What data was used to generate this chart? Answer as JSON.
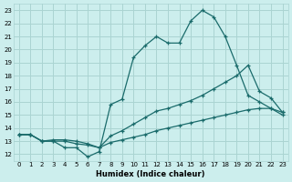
{
  "xlabel": "Humidex (Indice chaleur)",
  "xlim": [
    -0.5,
    23.5
  ],
  "ylim": [
    11.5,
    23.5
  ],
  "yticks": [
    12,
    13,
    14,
    15,
    16,
    17,
    18,
    19,
    20,
    21,
    22,
    23
  ],
  "xticks": [
    0,
    1,
    2,
    3,
    4,
    5,
    6,
    7,
    8,
    9,
    10,
    11,
    12,
    13,
    14,
    15,
    16,
    17,
    18,
    19,
    20,
    21,
    22,
    23
  ],
  "bg_color": "#cceeed",
  "grid_color": "#aad4d2",
  "line_color": "#1a6b6b",
  "line1_x": [
    0,
    1,
    2,
    3,
    4,
    5,
    6,
    7,
    8,
    9,
    10,
    11,
    12,
    13,
    14,
    15,
    16,
    17,
    18,
    19,
    20,
    21,
    22,
    23
  ],
  "line1_y": [
    13.5,
    13.5,
    13.0,
    13.0,
    12.5,
    12.5,
    11.8,
    12.2,
    15.8,
    16.2,
    19.4,
    20.3,
    21.0,
    20.5,
    20.5,
    22.2,
    23.0,
    22.5,
    21.0,
    18.8,
    16.5,
    16.0,
    15.5,
    15.0
  ],
  "line2_x": [
    0,
    1,
    2,
    3,
    4,
    5,
    6,
    7,
    8,
    9,
    10,
    11,
    12,
    13,
    14,
    15,
    16,
    17,
    18,
    19,
    20,
    21,
    22,
    23
  ],
  "line2_y": [
    13.5,
    13.5,
    13.0,
    13.1,
    13.1,
    13.0,
    12.8,
    12.5,
    13.4,
    13.8,
    14.3,
    14.8,
    15.3,
    15.5,
    15.8,
    16.1,
    16.5,
    17.0,
    17.5,
    18.0,
    18.8,
    16.8,
    16.3,
    15.2
  ],
  "line3_x": [
    0,
    1,
    2,
    3,
    4,
    5,
    6,
    7,
    8,
    9,
    10,
    11,
    12,
    13,
    14,
    15,
    16,
    17,
    18,
    19,
    20,
    21,
    22,
    23
  ],
  "line3_y": [
    13.5,
    13.5,
    13.0,
    13.0,
    13.0,
    12.8,
    12.7,
    12.5,
    12.9,
    13.1,
    13.3,
    13.5,
    13.8,
    14.0,
    14.2,
    14.4,
    14.6,
    14.8,
    15.0,
    15.2,
    15.4,
    15.5,
    15.5,
    15.2
  ]
}
